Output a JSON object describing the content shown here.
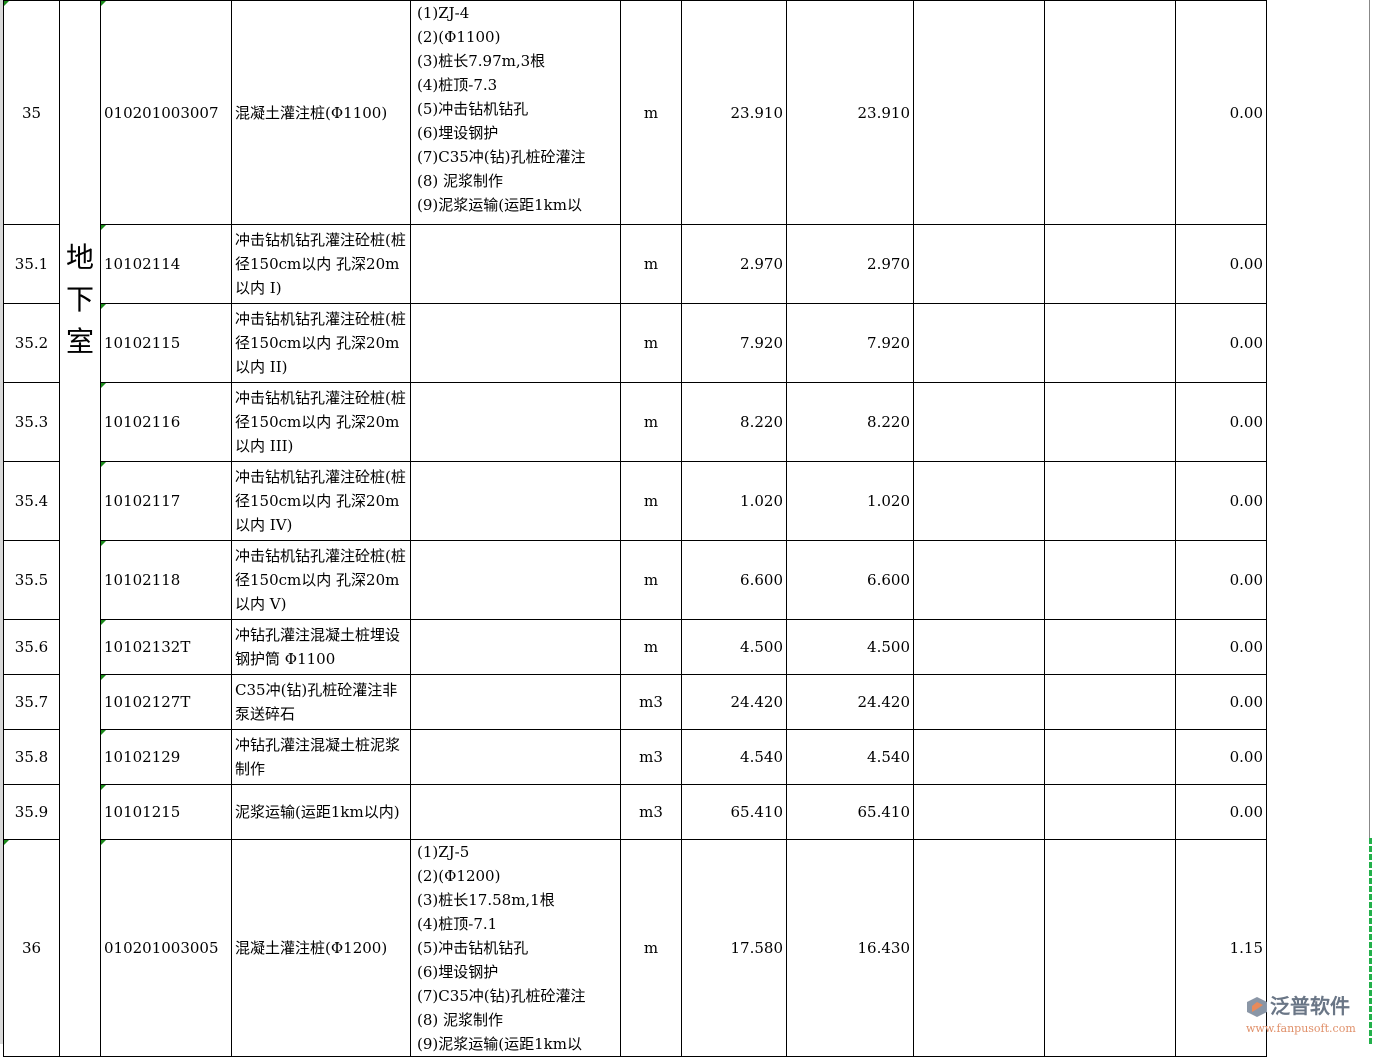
{
  "zone_label": "地下室",
  "rows": [
    {
      "no": "35",
      "code": "010201003007",
      "name": "混凝土灌注桩(Φ1100)",
      "features": [
        "(1)ZJ-4",
        "(2)(Φ1100)",
        "(3)桩长7.97m,3根",
        "(4)桩顶-7.3",
        "(5)冲击钻机钻孔",
        "(6)埋设钢护",
        "(7)C35冲(钻)孔桩砼灌注",
        "(8) 泥浆制作",
        "(9)泥浆运输(运距1km以"
      ],
      "unit": "m",
      "qty1": "23.910",
      "qty2": "23.910",
      "c8": "",
      "c9": "",
      "c10": "0.00"
    },
    {
      "no": "35.1",
      "code": "10102114",
      "name": "冲击钻机钻孔灌注砼桩(桩径150cm以内 孔深20m以内 I)",
      "features": [],
      "unit": "m",
      "qty1": "2.970",
      "qty2": "2.970",
      "c8": "",
      "c9": "",
      "c10": "0.00"
    },
    {
      "no": "35.2",
      "code": "10102115",
      "name": "冲击钻机钻孔灌注砼桩(桩径150cm以内 孔深20m以内 II)",
      "features": [],
      "unit": "m",
      "qty1": "7.920",
      "qty2": "7.920",
      "c8": "",
      "c9": "",
      "c10": "0.00"
    },
    {
      "no": "35.3",
      "code": "10102116",
      "name": "冲击钻机钻孔灌注砼桩(桩径150cm以内 孔深20m以内 III)",
      "features": [],
      "unit": "m",
      "qty1": "8.220",
      "qty2": "8.220",
      "c8": "",
      "c9": "",
      "c10": "0.00"
    },
    {
      "no": "35.4",
      "code": "10102117",
      "name": "冲击钻机钻孔灌注砼桩(桩径150cm以内 孔深20m以内 IV)",
      "features": [],
      "unit": "m",
      "qty1": "1.020",
      "qty2": "1.020",
      "c8": "",
      "c9": "",
      "c10": "0.00"
    },
    {
      "no": "35.5",
      "code": "10102118",
      "name": "冲击钻机钻孔灌注砼桩(桩径150cm以内 孔深20m以内 V)",
      "features": [],
      "unit": "m",
      "qty1": "6.600",
      "qty2": "6.600",
      "c8": "",
      "c9": "",
      "c10": "0.00"
    },
    {
      "no": "35.6",
      "code": "10102132T",
      "name": "冲钻孔灌注混凝土桩埋设钢护筒 Φ1100",
      "features": [],
      "unit": "m",
      "qty1": "4.500",
      "qty2": "4.500",
      "c8": "",
      "c9": "",
      "c10": "0.00"
    },
    {
      "no": "35.7",
      "code": "10102127T",
      "name": "C35冲(钻)孔桩砼灌注非泵送碎石",
      "features": [],
      "unit": "m3",
      "qty1": "24.420",
      "qty2": "24.420",
      "c8": "",
      "c9": "",
      "c10": "0.00"
    },
    {
      "no": "35.8",
      "code": "10102129",
      "name": "冲钻孔灌注混凝土桩泥浆制作",
      "features": [],
      "unit": "m3",
      "qty1": "4.540",
      "qty2": "4.540",
      "c8": "",
      "c9": "",
      "c10": "0.00"
    },
    {
      "no": "35.9",
      "code": "10101215",
      "name": "泥浆运输(运距1km以内)",
      "features": [],
      "unit": "m3",
      "qty1": "65.410",
      "qty2": "65.410",
      "c8": "",
      "c9": "",
      "c10": "0.00"
    },
    {
      "no": "36",
      "code": "010201003005",
      "name": "混凝土灌注桩(Φ1200)",
      "features": [
        "(1)ZJ-5",
        "(2)(Φ1200)",
        "(3)桩长17.58m,1根",
        "(4)桩顶-7.1",
        "(5)冲击钻机钻孔",
        "(6)埋设钢护",
        "(7)C35冲(钻)孔桩砼灌注",
        "(8) 泥浆制作",
        "(9)泥浆运输(运距1km以"
      ],
      "unit": "m",
      "qty1": "17.580",
      "qty2": "16.430",
      "c8": "",
      "c9": "",
      "c10": "1.15"
    }
  ],
  "watermark": {
    "name": "泛普软件",
    "url": "www.fanpusoft.com"
  },
  "colors": {
    "cell_marker": "#1a8a1a",
    "selection": "#22b04a"
  }
}
